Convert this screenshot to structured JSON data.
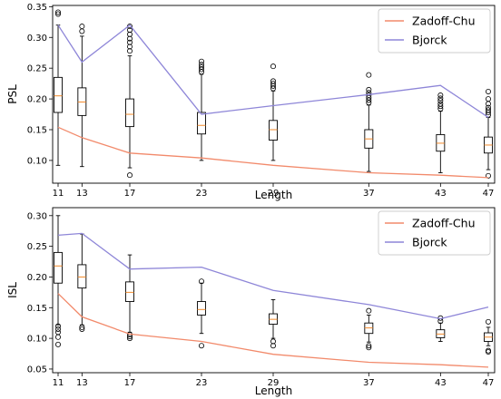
{
  "chart_data": [
    {
      "type": "box",
      "xlabel": "Length",
      "ylabel": "PSL",
      "x": [
        11,
        13,
        17,
        23,
        29,
        37,
        43,
        47
      ],
      "ylim": [
        0.063,
        0.352
      ],
      "yticks": [
        "0.10",
        "0.15",
        "0.20",
        "0.25",
        "0.30",
        "0.35"
      ],
      "legend_position": "top-right",
      "grid": false,
      "boxes": [
        {
          "x": 11,
          "whislo": 0.092,
          "q1": 0.178,
          "med": 0.205,
          "q3": 0.235,
          "whishi": 0.32,
          "fliers": [
            0.338,
            0.341
          ]
        },
        {
          "x": 13,
          "whislo": 0.09,
          "q1": 0.173,
          "med": 0.195,
          "q3": 0.218,
          "whishi": 0.302,
          "fliers": [
            0.31,
            0.318
          ]
        },
        {
          "x": 17,
          "whislo": 0.088,
          "q1": 0.155,
          "med": 0.175,
          "q3": 0.2,
          "whishi": 0.27,
          "fliers": [
            0.076,
            0.278,
            0.285,
            0.292,
            0.298,
            0.305,
            0.312,
            0.318
          ]
        },
        {
          "x": 23,
          "whislo": 0.1,
          "q1": 0.143,
          "med": 0.157,
          "q3": 0.178,
          "whishi": 0.24,
          "fliers": [
            0.244,
            0.248,
            0.252,
            0.256,
            0.261
          ]
        },
        {
          "x": 29,
          "whislo": 0.1,
          "q1": 0.133,
          "med": 0.15,
          "q3": 0.165,
          "whishi": 0.213,
          "fliers": [
            0.217,
            0.221,
            0.225,
            0.229,
            0.253
          ]
        },
        {
          "x": 37,
          "whislo": 0.082,
          "q1": 0.12,
          "med": 0.135,
          "q3": 0.15,
          "whishi": 0.19,
          "fliers": [
            0.194,
            0.198,
            0.202,
            0.206,
            0.21,
            0.215,
            0.239
          ]
        },
        {
          "x": 43,
          "whislo": 0.08,
          "q1": 0.115,
          "med": 0.128,
          "q3": 0.142,
          "whishi": 0.18,
          "fliers": [
            0.184,
            0.188,
            0.192,
            0.197,
            0.201,
            0.206
          ]
        },
        {
          "x": 47,
          "whislo": 0.085,
          "q1": 0.112,
          "med": 0.125,
          "q3": 0.138,
          "whishi": 0.17,
          "fliers": [
            0.075,
            0.174,
            0.178,
            0.182,
            0.186,
            0.192,
            0.2,
            0.212
          ]
        }
      ],
      "series": [
        {
          "name": "Zadoff-Chu",
          "color": "#f28a6b",
          "values": [
            0.154,
            0.137,
            0.112,
            0.104,
            0.092,
            0.08,
            0.076,
            0.072
          ]
        },
        {
          "name": "Bjorck",
          "color": "#8e86d8",
          "values": [
            0.32,
            0.26,
            0.32,
            0.175,
            0.189,
            0.207,
            0.222,
            0.17
          ]
        }
      ]
    },
    {
      "type": "box",
      "xlabel": "Length",
      "ylabel": "ISL",
      "x": [
        11,
        13,
        17,
        23,
        29,
        37,
        43,
        47
      ],
      "ylim": [
        0.044,
        0.313
      ],
      "yticks": [
        "0.05",
        "0.10",
        "0.15",
        "0.20",
        "0.25",
        "0.30"
      ],
      "legend_position": "top-right",
      "grid": false,
      "boxes": [
        {
          "x": 11,
          "whislo": 0.122,
          "q1": 0.19,
          "med": 0.218,
          "q3": 0.24,
          "whishi": 0.3,
          "fliers": [
            0.09,
            0.102,
            0.11,
            0.115,
            0.12
          ]
        },
        {
          "x": 13,
          "whislo": 0.122,
          "q1": 0.182,
          "med": 0.2,
          "q3": 0.22,
          "whishi": 0.27,
          "fliers": [
            0.115,
            0.118
          ]
        },
        {
          "x": 17,
          "whislo": 0.11,
          "q1": 0.16,
          "med": 0.175,
          "q3": 0.192,
          "whishi": 0.236,
          "fliers": [
            0.1,
            0.103,
            0.106
          ]
        },
        {
          "x": 23,
          "whislo": 0.108,
          "q1": 0.138,
          "med": 0.147,
          "q3": 0.16,
          "whishi": 0.19,
          "fliers": [
            0.088,
            0.193
          ]
        },
        {
          "x": 29,
          "whislo": 0.1,
          "q1": 0.123,
          "med": 0.131,
          "q3": 0.14,
          "whishi": 0.163,
          "fliers": [
            0.088,
            0.095
          ]
        },
        {
          "x": 37,
          "whislo": 0.094,
          "q1": 0.108,
          "med": 0.117,
          "q3": 0.125,
          "whishi": 0.138,
          "fliers": [
            0.085,
            0.088,
            0.145
          ]
        },
        {
          "x": 43,
          "whislo": 0.095,
          "q1": 0.101,
          "med": 0.107,
          "q3": 0.114,
          "whishi": 0.125,
          "fliers": [
            0.128,
            0.133
          ]
        },
        {
          "x": 47,
          "whislo": 0.088,
          "q1": 0.095,
          "med": 0.102,
          "q3": 0.109,
          "whishi": 0.118,
          "fliers": [
            0.078,
            0.08,
            0.127
          ]
        }
      ],
      "series": [
        {
          "name": "Zadoff-Chu",
          "color": "#f28a6b",
          "values": [
            0.173,
            0.135,
            0.107,
            0.095,
            0.074,
            0.061,
            0.057,
            0.053
          ]
        },
        {
          "name": "Bjorck",
          "color": "#8e86d8",
          "values": [
            0.268,
            0.271,
            0.213,
            0.216,
            0.178,
            0.155,
            0.132,
            0.151
          ]
        }
      ]
    }
  ]
}
